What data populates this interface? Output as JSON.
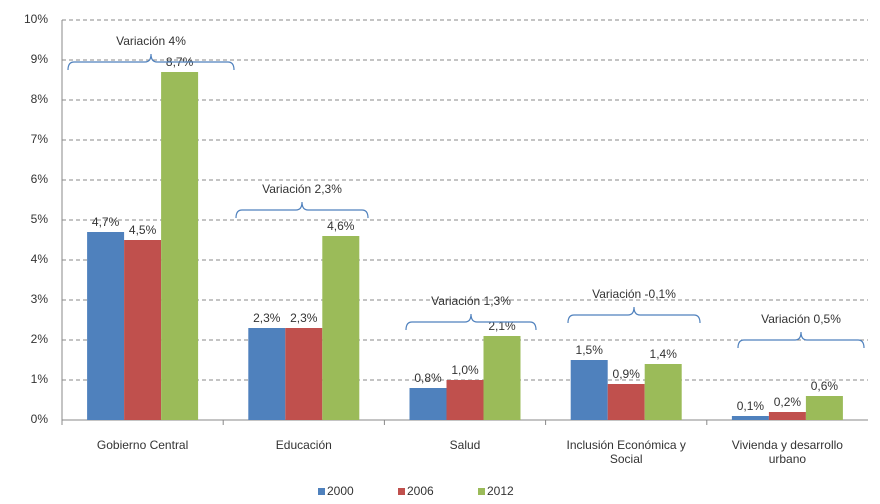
{
  "chart_data": {
    "type": "bar",
    "categories": [
      "Gobierno Central",
      "Educación",
      "Salud",
      "Inclusión Económica y Social",
      "Vivienda y desarrollo urbano"
    ],
    "series": [
      {
        "name": "2000",
        "color": "#4f81bd",
        "values": [
          4.7,
          2.3,
          0.8,
          1.5,
          0.1
        ],
        "value_labels": [
          "4,7%",
          "2,3%",
          "0,8%",
          "1,5%",
          "0,1%"
        ]
      },
      {
        "name": "2006",
        "color": "#c0504d",
        "values": [
          4.5,
          2.3,
          1.0,
          0.9,
          0.2
        ],
        "value_labels": [
          "4,5%",
          "2,3%",
          "1,0%",
          "0,9%",
          "0,2%"
        ]
      },
      {
        "name": "2012",
        "color": "#9bbb59",
        "values": [
          8.7,
          4.6,
          2.1,
          1.4,
          0.6
        ],
        "value_labels": [
          "8,7%",
          "4,6%",
          "2,1%",
          "1,4%",
          "0,6%"
        ]
      }
    ],
    "annotations": [
      "Variación 4%",
      "Variación 2,3%",
      "Variación 1,3%",
      "Variación -0,1%",
      "Variación 0,5%"
    ],
    "ylim": [
      0,
      10
    ],
    "yticks": [
      {
        "value": 0,
        "label": "0%"
      },
      {
        "value": 1,
        "label": "1%"
      },
      {
        "value": 2,
        "label": "2%"
      },
      {
        "value": 3,
        "label": "3%"
      },
      {
        "value": 4,
        "label": "4%"
      },
      {
        "value": 5,
        "label": "5%"
      },
      {
        "value": 6,
        "label": "6%"
      },
      {
        "value": 7,
        "label": "7%"
      },
      {
        "value": 8,
        "label": "8%"
      },
      {
        "value": 9,
        "label": "9%"
      },
      {
        "value": 10,
        "label": "10%"
      }
    ],
    "grid": true,
    "legend": "bottom"
  }
}
